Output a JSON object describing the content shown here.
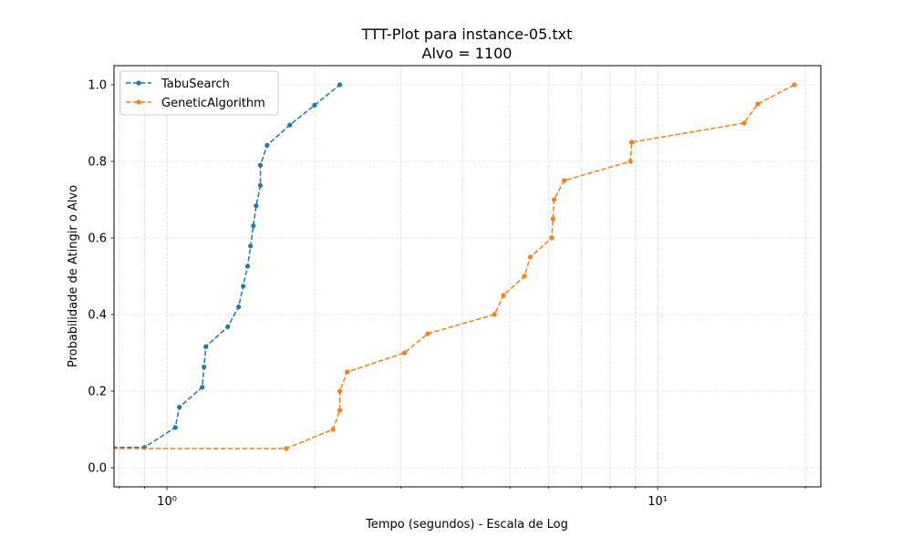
{
  "chart_data": {
    "type": "line",
    "title": "TTT-Plot para instance-05.txt",
    "subtitle": "Alvo = 1100",
    "xlabel": "Tempo (segundos) - Escala de Log",
    "ylabel": "Probabilidade de Atingir o Alvo",
    "xscale": "log",
    "xlim": [
      0.78,
      21.5
    ],
    "ylim": [
      -0.05,
      1.05
    ],
    "yticks": [
      0.0,
      0.2,
      0.4,
      0.6,
      0.8,
      1.0
    ],
    "ytick_labels": [
      "0.0",
      "0.2",
      "0.4",
      "0.6",
      "0.8",
      "1.0"
    ],
    "xticks_major": [
      1,
      10
    ],
    "xtick_labels": [
      "10⁰",
      "10¹"
    ],
    "grid": true,
    "legend_position": "upper-left",
    "series": [
      {
        "name": "TabuSearch",
        "color": "#1f77b4",
        "linestyle": "dashed",
        "marker": "circle",
        "x": [
          0.7,
          0.9,
          1.04,
          1.06,
          1.18,
          1.19,
          1.2,
          1.33,
          1.4,
          1.43,
          1.46,
          1.48,
          1.5,
          1.52,
          1.55,
          1.55,
          1.6,
          1.78,
          2.0,
          2.25
        ],
        "y": [
          0.053,
          0.053,
          0.105,
          0.158,
          0.21,
          0.263,
          0.316,
          0.368,
          0.42,
          0.474,
          0.526,
          0.579,
          0.632,
          0.684,
          0.737,
          0.79,
          0.842,
          0.895,
          0.947,
          1.0
        ]
      },
      {
        "name": "GeneticAlgorithm",
        "color": "#ff7f0e",
        "linestyle": "dashed",
        "marker": "circle",
        "x": [
          0.7,
          1.75,
          2.18,
          2.25,
          2.25,
          2.33,
          3.05,
          3.4,
          4.65,
          4.85,
          5.35,
          5.5,
          6.08,
          6.12,
          6.15,
          6.45,
          8.8,
          8.85,
          15.0,
          16.0,
          19.0
        ],
        "y": [
          0.05,
          0.05,
          0.1,
          0.15,
          0.2,
          0.25,
          0.3,
          0.35,
          0.4,
          0.45,
          0.5,
          0.55,
          0.6,
          0.65,
          0.7,
          0.75,
          0.8,
          0.85,
          0.9,
          0.95,
          1.0
        ]
      }
    ]
  }
}
